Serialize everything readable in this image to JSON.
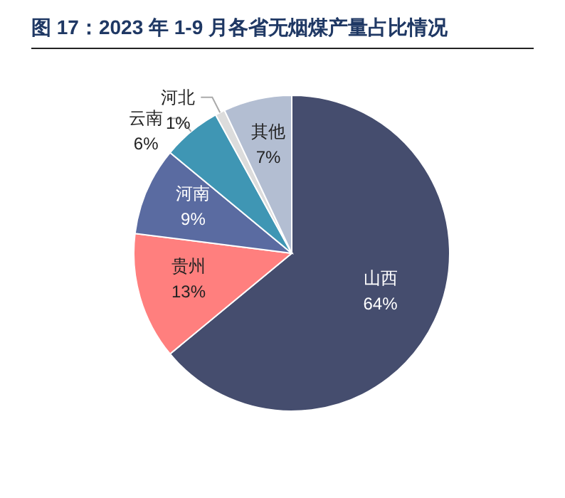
{
  "chart_data": {
    "type": "pie",
    "title": "图 17：2023 年 1-9 月各省无烟煤产量占比情况",
    "categories": [
      "山西",
      "贵州",
      "河南",
      "云南",
      "河北",
      "其他"
    ],
    "values": [
      64,
      13,
      9,
      6,
      1,
      7
    ],
    "colors": [
      "#454d6e",
      "#ff7f7e",
      "#5a6ba1",
      "#3f96b4",
      "#dcdcdc",
      "#b3bed2"
    ],
    "value_labels": [
      "64%",
      "13%",
      "9%",
      "6%",
      "1%",
      "7%"
    ]
  }
}
